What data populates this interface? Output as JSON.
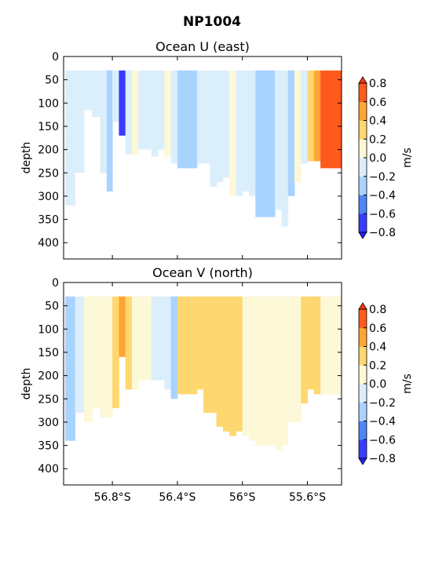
{
  "figure": {
    "suptitle": "NP1004"
  },
  "colorbar": {
    "ticks": [
      "0.8",
      "0.6",
      "0.4",
      "0.2",
      "0.0",
      "−0.2",
      "−0.4",
      "−0.6",
      "−0.8"
    ],
    "label": "m/s",
    "levels": [
      -0.8,
      -0.6,
      -0.4,
      -0.2,
      0.0,
      0.2,
      0.4,
      0.6,
      0.8
    ],
    "colors": [
      "#3b3bff",
      "#4d86f5",
      "#a9d3ff",
      "#dbeefc",
      "#fcf8d8",
      "#ffd770",
      "#ffa534",
      "#ff5a1d"
    ],
    "under_color": "#2222ff",
    "over_color": "#ff3a12"
  },
  "chart_data": [
    {
      "type": "heatmap",
      "title": "Ocean U (east)",
      "xlabel": "",
      "ylabel": "depth",
      "xlim": [
        -57.1,
        -55.39
      ],
      "ylim": [
        435,
        0
      ],
      "yticks": [
        "0",
        "50",
        "100",
        "150",
        "200",
        "250",
        "300",
        "350",
        "400"
      ],
      "xticks": [],
      "grid": false,
      "columns": [
        {
          "lon": -57.06,
          "bottom": 320,
          "value": -0.1
        },
        {
          "lon": -57.0,
          "bottom": 250,
          "value": -0.1
        },
        {
          "lon": -56.95,
          "bottom": 115,
          "value": -0.1
        },
        {
          "lon": -56.9,
          "bottom": 130,
          "value": -0.1
        },
        {
          "lon": -56.85,
          "bottom": 250,
          "value": -0.1
        },
        {
          "lon": -56.82,
          "bottom": 290,
          "value": -0.3
        },
        {
          "lon": -56.78,
          "bottom": 140,
          "value": -0.1
        },
        {
          "lon": -56.74,
          "bottom": 170,
          "value": -0.7
        },
        {
          "lon": -56.7,
          "bottom": 210,
          "value": -0.1
        },
        {
          "lon": -56.66,
          "bottom": 210,
          "value": 0.1
        },
        {
          "lon": -56.62,
          "bottom": 200,
          "value": -0.1
        },
        {
          "lon": -56.58,
          "bottom": 200,
          "value": -0.1
        },
        {
          "lon": -56.54,
          "bottom": 215,
          "value": -0.1
        },
        {
          "lon": -56.5,
          "bottom": 200,
          "value": -0.1
        },
        {
          "lon": -56.46,
          "bottom": 215,
          "value": 0.1
        },
        {
          "lon": -56.42,
          "bottom": 230,
          "value": -0.1
        },
        {
          "lon": -56.38,
          "bottom": 240,
          "value": -0.3
        },
        {
          "lon": -56.34,
          "bottom": 240,
          "value": -0.3
        },
        {
          "lon": -56.3,
          "bottom": 240,
          "value": -0.3
        },
        {
          "lon": -56.26,
          "bottom": 230,
          "value": -0.1
        },
        {
          "lon": -56.22,
          "bottom": 230,
          "value": -0.1
        },
        {
          "lon": -56.18,
          "bottom": 280,
          "value": -0.1
        },
        {
          "lon": -56.14,
          "bottom": 270,
          "value": -0.1
        },
        {
          "lon": -56.1,
          "bottom": 260,
          "value": -0.1
        },
        {
          "lon": -56.06,
          "bottom": 300,
          "value": 0.1
        },
        {
          "lon": -56.02,
          "bottom": 300,
          "value": -0.1
        },
        {
          "lon": -55.98,
          "bottom": 290,
          "value": -0.1
        },
        {
          "lon": -55.94,
          "bottom": 300,
          "value": -0.1
        },
        {
          "lon": -55.9,
          "bottom": 345,
          "value": -0.3
        },
        {
          "lon": -55.86,
          "bottom": 345,
          "value": -0.3
        },
        {
          "lon": -55.82,
          "bottom": 345,
          "value": -0.3
        },
        {
          "lon": -55.78,
          "bottom": 330,
          "value": -0.1
        },
        {
          "lon": -55.74,
          "bottom": 365,
          "value": -0.1
        },
        {
          "lon": -55.7,
          "bottom": 300,
          "value": -0.3
        },
        {
          "lon": -55.66,
          "bottom": 270,
          "value": 0.1
        },
        {
          "lon": -55.62,
          "bottom": 230,
          "value": -0.1
        },
        {
          "lon": -55.58,
          "bottom": 225,
          "value": 0.3
        },
        {
          "lon": -55.54,
          "bottom": 225,
          "value": 0.5
        },
        {
          "lon": -55.5,
          "bottom": 240,
          "value": 0.7
        },
        {
          "lon": -55.46,
          "bottom": 240,
          "value": 0.7
        },
        {
          "lon": -55.42,
          "bottom": 240,
          "value": 0.7
        }
      ]
    },
    {
      "type": "heatmap",
      "title": "Ocean V (north)",
      "xlabel": "",
      "ylabel": "depth",
      "xlim": [
        -57.1,
        -55.39
      ],
      "ylim": [
        435,
        0
      ],
      "yticks": [
        "0",
        "50",
        "100",
        "150",
        "200",
        "250",
        "300",
        "350",
        "400"
      ],
      "xticks": [
        "56.8°S",
        "56.4°S",
        "56°S",
        "55.6°S"
      ],
      "xtick_values": [
        -56.8,
        -56.4,
        -56.0,
        -55.6
      ],
      "grid": false,
      "columns": [
        {
          "lon": -57.06,
          "bottom": 340,
          "value": -0.3
        },
        {
          "lon": -57.0,
          "bottom": 280,
          "value": -0.1
        },
        {
          "lon": -56.95,
          "bottom": 300,
          "value": 0.1
        },
        {
          "lon": -56.9,
          "bottom": 270,
          "value": 0.1
        },
        {
          "lon": -56.85,
          "bottom": 290,
          "value": 0.1
        },
        {
          "lon": -56.82,
          "bottom": 290,
          "value": 0.1
        },
        {
          "lon": -56.78,
          "bottom": 270,
          "value": 0.3
        },
        {
          "lon": -56.74,
          "bottom": 160,
          "value": 0.5
        },
        {
          "lon": -56.7,
          "bottom": 230,
          "value": 0.3
        },
        {
          "lon": -56.66,
          "bottom": 230,
          "value": 0.1
        },
        {
          "lon": -56.62,
          "bottom": 210,
          "value": 0.1
        },
        {
          "lon": -56.58,
          "bottom": 210,
          "value": 0.1
        },
        {
          "lon": -56.54,
          "bottom": 210,
          "value": -0.1
        },
        {
          "lon": -56.5,
          "bottom": 210,
          "value": -0.1
        },
        {
          "lon": -56.46,
          "bottom": 230,
          "value": -0.1
        },
        {
          "lon": -56.42,
          "bottom": 250,
          "value": -0.3
        },
        {
          "lon": -56.38,
          "bottom": 240,
          "value": 0.3
        },
        {
          "lon": -56.34,
          "bottom": 240,
          "value": 0.3
        },
        {
          "lon": -56.3,
          "bottom": 240,
          "value": 0.3
        },
        {
          "lon": -56.26,
          "bottom": 230,
          "value": 0.3
        },
        {
          "lon": -56.22,
          "bottom": 280,
          "value": 0.3
        },
        {
          "lon": -56.18,
          "bottom": 280,
          "value": 0.3
        },
        {
          "lon": -56.14,
          "bottom": 310,
          "value": 0.3
        },
        {
          "lon": -56.1,
          "bottom": 320,
          "value": 0.3
        },
        {
          "lon": -56.06,
          "bottom": 330,
          "value": 0.3
        },
        {
          "lon": -56.02,
          "bottom": 320,
          "value": 0.3
        },
        {
          "lon": -55.98,
          "bottom": 330,
          "value": 0.1
        },
        {
          "lon": -55.94,
          "bottom": 340,
          "value": 0.1
        },
        {
          "lon": -55.9,
          "bottom": 350,
          "value": 0.1
        },
        {
          "lon": -55.86,
          "bottom": 350,
          "value": 0.1
        },
        {
          "lon": -55.82,
          "bottom": 350,
          "value": 0.1
        },
        {
          "lon": -55.78,
          "bottom": 360,
          "value": 0.1
        },
        {
          "lon": -55.74,
          "bottom": 350,
          "value": 0.1
        },
        {
          "lon": -55.7,
          "bottom": 300,
          "value": 0.1
        },
        {
          "lon": -55.66,
          "bottom": 300,
          "value": 0.1
        },
        {
          "lon": -55.62,
          "bottom": 260,
          "value": 0.3
        },
        {
          "lon": -55.58,
          "bottom": 230,
          "value": 0.3
        },
        {
          "lon": -55.54,
          "bottom": 240,
          "value": 0.3
        },
        {
          "lon": -55.5,
          "bottom": 240,
          "value": 0.1
        },
        {
          "lon": -55.46,
          "bottom": 240,
          "value": 0.1
        },
        {
          "lon": -55.42,
          "bottom": 240,
          "value": 0.1
        }
      ]
    }
  ]
}
